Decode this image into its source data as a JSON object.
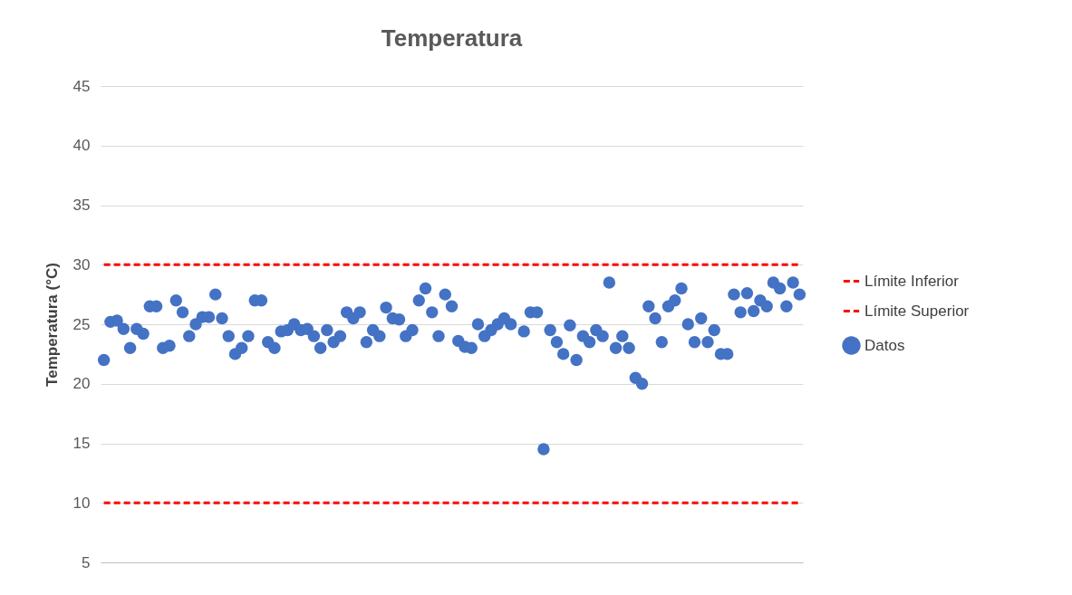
{
  "chart_data": {
    "type": "scatter",
    "title": "Temperatura",
    "ylabel": "Temperatura (°C)",
    "categories": [
      null,
      null,
      null,
      null,
      null,
      null,
      null,
      null,
      null,
      null,
      null,
      null,
      null,
      null,
      null,
      null,
      null,
      null,
      null,
      null,
      null,
      null,
      null,
      null,
      null,
      null,
      null,
      null,
      null,
      null,
      null,
      null,
      null,
      null,
      null,
      null,
      null,
      null,
      null,
      null,
      null,
      null,
      null,
      null,
      null,
      null,
      null,
      null,
      null,
      null,
      null,
      null,
      null,
      null,
      null,
      null,
      null,
      null,
      null,
      null,
      null,
      null,
      null,
      null,
      null,
      null,
      null,
      null,
      null,
      null,
      null,
      null,
      null,
      null,
      null,
      null,
      null,
      null,
      null,
      null,
      null,
      null,
      null,
      null,
      null,
      null,
      null,
      null,
      null,
      null,
      null,
      null,
      null,
      null,
      null,
      null,
      null,
      null,
      null,
      null,
      null,
      null,
      null,
      null,
      null,
      null,
      null
    ],
    "series": [
      {
        "name": "Límite Inferior",
        "type": "line",
        "color": "#ff0000",
        "line_style": "dashed",
        "marker": "none",
        "values": [
          10,
          10,
          10,
          10,
          10,
          10,
          10,
          10,
          10,
          10,
          10,
          10,
          10,
          10,
          10,
          10,
          10,
          10,
          10,
          10,
          10,
          10,
          10,
          10,
          10,
          10,
          10,
          10,
          10,
          10,
          10,
          10,
          10,
          10,
          10,
          10,
          10,
          10,
          10,
          10,
          10,
          10,
          10,
          10,
          10,
          10,
          10,
          10,
          10,
          10,
          10,
          10,
          10,
          10,
          10,
          10,
          10,
          10,
          10,
          10,
          10,
          10,
          10,
          10,
          10,
          10,
          10,
          10,
          10,
          10,
          10,
          10,
          10,
          10,
          10,
          10,
          10,
          10,
          10,
          10,
          10,
          10,
          10,
          10,
          10,
          10,
          10,
          10,
          10,
          10,
          10,
          10,
          10,
          10,
          10,
          10,
          10,
          10,
          10,
          10,
          10,
          10,
          10,
          10,
          10,
          10,
          10
        ]
      },
      {
        "name": "Límite Superior",
        "type": "line",
        "color": "#ff0000",
        "line_style": "dashed",
        "marker": "none",
        "values": [
          30,
          30,
          30,
          30,
          30,
          30,
          30,
          30,
          30,
          30,
          30,
          30,
          30,
          30,
          30,
          30,
          30,
          30,
          30,
          30,
          30,
          30,
          30,
          30,
          30,
          30,
          30,
          30,
          30,
          30,
          30,
          30,
          30,
          30,
          30,
          30,
          30,
          30,
          30,
          30,
          30,
          30,
          30,
          30,
          30,
          30,
          30,
          30,
          30,
          30,
          30,
          30,
          30,
          30,
          30,
          30,
          30,
          30,
          30,
          30,
          30,
          30,
          30,
          30,
          30,
          30,
          30,
          30,
          30,
          30,
          30,
          30,
          30,
          30,
          30,
          30,
          30,
          30,
          30,
          30,
          30,
          30,
          30,
          30,
          30,
          30,
          30,
          30,
          30,
          30,
          30,
          30,
          30,
          30,
          30,
          30,
          30,
          30,
          30,
          30,
          30,
          30,
          30,
          30,
          30,
          30,
          30
        ]
      },
      {
        "name": "Datos",
        "color": "#4472c4",
        "marker": "circle",
        "values": [
          22,
          25.2,
          25.3,
          24.6,
          23,
          24.6,
          24.2,
          26.5,
          26.5,
          23,
          23.2,
          27,
          26,
          24,
          25,
          25.6,
          25.6,
          27.5,
          25.5,
          24,
          22.5,
          23,
          24,
          27,
          27,
          23.5,
          23,
          24.4,
          24.5,
          25,
          24.5,
          24.6,
          24,
          23,
          24.5,
          23.5,
          24,
          26,
          25.5,
          26,
          23.5,
          24.5,
          24,
          26.4,
          25.5,
          25.4,
          24,
          24.5,
          27,
          28,
          26,
          24,
          27.5,
          26.5,
          23.6,
          23.1,
          23,
          25,
          24,
          24.5,
          25,
          25.5,
          25,
          null,
          24.4,
          26,
          26,
          14.5,
          24.5,
          23.5,
          22.5,
          24.9,
          22,
          24,
          23.5,
          24.5,
          24,
          28.5,
          23,
          24,
          23,
          20.5,
          20,
          26.5,
          25.5,
          23.5,
          26.5,
          27,
          28,
          25,
          23.5,
          25.5,
          23.5,
          24.5,
          22.5,
          22.5,
          27.5,
          26,
          27.6,
          26.1,
          27,
          26.5,
          28.5,
          28,
          26.5,
          28.5,
          27.5
        ]
      }
    ],
    "ylim": [
      5,
      45
    ],
    "yticks": [
      5,
      10,
      15,
      20,
      25,
      30,
      35,
      40,
      45
    ],
    "grid": "y",
    "legend": "right"
  }
}
